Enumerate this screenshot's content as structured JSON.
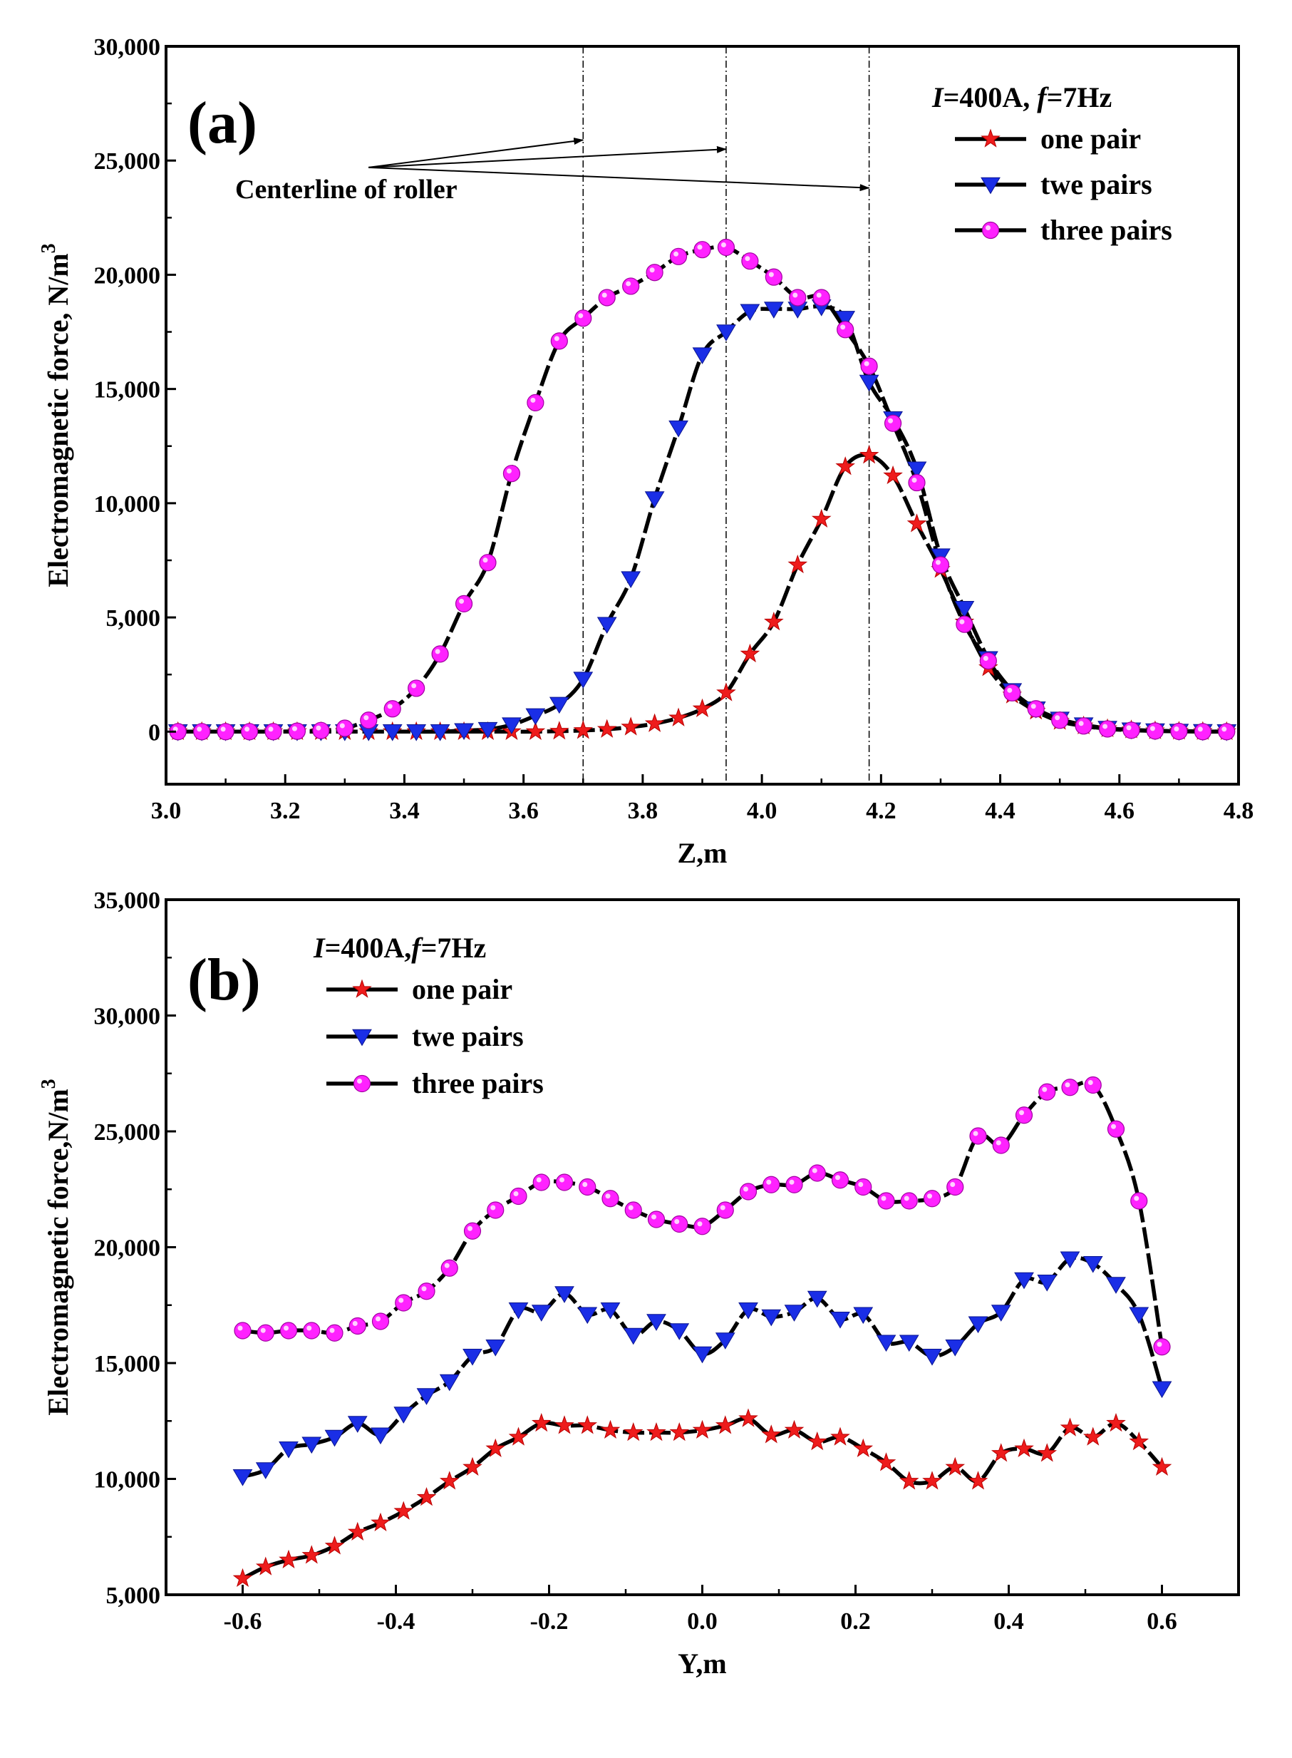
{
  "chart_data": [
    {
      "type": "line",
      "panel_label": "(a)",
      "xlabel": "Z,m",
      "ylabel": "Electromagnetic force,  N/m",
      "ylabel_sup": "3",
      "xlim": [
        3.0,
        4.8
      ],
      "ylim": [
        -2300,
        30000
      ],
      "xticks": [
        3.0,
        3.2,
        3.4,
        3.6,
        3.8,
        4.0,
        4.2,
        4.4,
        4.6,
        4.8
      ],
      "xtick_labels": [
        "3.0",
        "3.2",
        "3.4",
        "3.6",
        "3.8",
        "4.0",
        "4.2",
        "4.4",
        "4.6",
        "4.8"
      ],
      "yticks": [
        0,
        5000,
        10000,
        15000,
        20000,
        25000,
        30000
      ],
      "ytick_labels": [
        "0",
        "5,000",
        "10,000",
        "15,000",
        "20,000",
        "25,000",
        "30,000"
      ],
      "legend_title_var1": "I",
      "legend_title_rest1": "=400A,  ",
      "legend_title_var2": "f",
      "legend_title_rest2": "=7Hz",
      "legend_position": "top-right",
      "vlines": [
        3.7,
        3.94,
        4.18
      ],
      "annotation": {
        "text": "Centerline of roller",
        "arrow_origin": [
          3.34,
          24700
        ],
        "arrow_targets": [
          [
            3.7,
            25900
          ],
          [
            3.94,
            25500
          ],
          [
            4.18,
            23800
          ]
        ]
      },
      "series": [
        {
          "name": "one  pair",
          "marker": "star",
          "color": "#ee1c1c",
          "x": [
            3.02,
            3.06,
            3.1,
            3.14,
            3.18,
            3.22,
            3.26,
            3.3,
            3.34,
            3.38,
            3.42,
            3.46,
            3.5,
            3.54,
            3.58,
            3.62,
            3.66,
            3.7,
            3.74,
            3.78,
            3.82,
            3.86,
            3.9,
            3.94,
            3.98,
            4.02,
            4.06,
            4.1,
            4.14,
            4.18,
            4.22,
            4.26,
            4.3,
            4.34,
            4.38,
            4.42,
            4.46,
            4.5,
            4.54,
            4.58,
            4.62,
            4.66,
            4.7,
            4.74,
            4.78
          ],
          "values": [
            0,
            0,
            0,
            0,
            0,
            0,
            0,
            0,
            0,
            0,
            0,
            0,
            0,
            0,
            0,
            0,
            20,
            50,
            100,
            200,
            350,
            600,
            1000,
            1700,
            3400,
            4800,
            7300,
            9300,
            11600,
            12100,
            11200,
            9100,
            7100,
            4800,
            2800,
            1600,
            900,
            450,
            250,
            130,
            80,
            40,
            20,
            10,
            0
          ]
        },
        {
          "name": "twe pairs",
          "marker": "triangle-down",
          "color": "#1a2ee6",
          "x": [
            3.02,
            3.06,
            3.1,
            3.14,
            3.18,
            3.22,
            3.26,
            3.3,
            3.34,
            3.38,
            3.42,
            3.46,
            3.5,
            3.54,
            3.58,
            3.62,
            3.66,
            3.7,
            3.74,
            3.78,
            3.82,
            3.86,
            3.9,
            3.94,
            3.98,
            4.02,
            4.06,
            4.1,
            4.14,
            4.18,
            4.22,
            4.26,
            4.3,
            4.34,
            4.38,
            4.42,
            4.46,
            4.5,
            4.54,
            4.58,
            4.62,
            4.66,
            4.7,
            4.74,
            4.78
          ],
          "values": [
            0,
            0,
            0,
            0,
            0,
            0,
            0,
            0,
            0,
            0,
            0,
            0,
            50,
            100,
            300,
            700,
            1200,
            2300,
            4700,
            6700,
            10200,
            13300,
            16500,
            17500,
            18400,
            18500,
            18500,
            18600,
            18100,
            15300,
            13700,
            11500,
            7700,
            5400,
            3200,
            1800,
            1000,
            550,
            300,
            150,
            80,
            40,
            20,
            10,
            0
          ]
        },
        {
          "name": "three pairs",
          "marker": "circle",
          "color": "#ff22ff",
          "x": [
            3.02,
            3.06,
            3.1,
            3.14,
            3.18,
            3.22,
            3.26,
            3.3,
            3.34,
            3.38,
            3.42,
            3.46,
            3.5,
            3.54,
            3.58,
            3.62,
            3.66,
            3.7,
            3.74,
            3.78,
            3.82,
            3.86,
            3.9,
            3.94,
            3.98,
            4.02,
            4.06,
            4.1,
            4.14,
            4.18,
            4.22,
            4.26,
            4.3,
            4.34,
            4.38,
            4.42,
            4.46,
            4.5,
            4.54,
            4.58,
            4.62,
            4.66,
            4.7,
            4.74,
            4.78
          ],
          "values": [
            0,
            0,
            0,
            0,
            0,
            20,
            50,
            150,
            500,
            1000,
            1900,
            3400,
            5600,
            7400,
            11300,
            14400,
            17100,
            18100,
            19000,
            19500,
            20100,
            20800,
            21100,
            21200,
            20600,
            19900,
            19000,
            19000,
            17600,
            16000,
            13500,
            10900,
            7300,
            4700,
            3100,
            1700,
            1000,
            500,
            250,
            120,
            60,
            30,
            10,
            0,
            0
          ]
        }
      ]
    },
    {
      "type": "line",
      "panel_label": "(b)",
      "xlabel": "Y,m",
      "ylabel": "Electromagnetic force,N/m",
      "ylabel_sup": "3",
      "xlim": [
        -0.7,
        0.7
      ],
      "ylim": [
        5000,
        35000
      ],
      "xticks": [
        -0.6,
        -0.4,
        -0.2,
        0.0,
        0.2,
        0.4,
        0.6
      ],
      "xtick_labels": [
        "-0.6",
        "-0.4",
        "-0.2",
        "0.0",
        "0.2",
        "0.4",
        "0.6"
      ],
      "yticks": [
        5000,
        10000,
        15000,
        20000,
        25000,
        30000,
        35000
      ],
      "ytick_labels": [
        "5,000",
        "10,000",
        "15,000",
        "20,000",
        "25,000",
        "30,000",
        "35,000"
      ],
      "legend_title_var1": "I",
      "legend_title_rest1": "=400A,",
      "legend_title_var2": "f",
      "legend_title_rest2": "=7Hz",
      "legend_position": "top-left",
      "series": [
        {
          "name": "one pair",
          "marker": "star",
          "color": "#ee1c1c",
          "x": [
            -0.6,
            -0.57,
            -0.54,
            -0.51,
            -0.48,
            -0.45,
            -0.42,
            -0.39,
            -0.36,
            -0.33,
            -0.3,
            -0.27,
            -0.24,
            -0.21,
            -0.18,
            -0.15,
            -0.12,
            -0.09,
            -0.06,
            -0.03,
            0.0,
            0.03,
            0.06,
            0.09,
            0.12,
            0.15,
            0.18,
            0.21,
            0.24,
            0.27,
            0.3,
            0.33,
            0.36,
            0.39,
            0.42,
            0.45,
            0.48,
            0.51,
            0.54,
            0.57,
            0.6
          ],
          "values": [
            5700,
            6200,
            6500,
            6700,
            7100,
            7700,
            8100,
            8600,
            9200,
            9900,
            10500,
            11300,
            11800,
            12400,
            12300,
            12300,
            12100,
            12000,
            12000,
            12000,
            12100,
            12300,
            12600,
            11900,
            12100,
            11600,
            11800,
            11300,
            10700,
            9900,
            9900,
            10500,
            9900,
            11100,
            11300,
            11100,
            12200,
            11800,
            12400,
            11600,
            10500
          ]
        },
        {
          "name": "twe pairs",
          "marker": "triangle-down",
          "color": "#1a2ee6",
          "x": [
            -0.6,
            -0.57,
            -0.54,
            -0.51,
            -0.48,
            -0.45,
            -0.42,
            -0.39,
            -0.36,
            -0.33,
            -0.3,
            -0.27,
            -0.24,
            -0.21,
            -0.18,
            -0.15,
            -0.12,
            -0.09,
            -0.06,
            -0.03,
            0.0,
            0.03,
            0.06,
            0.09,
            0.12,
            0.15,
            0.18,
            0.21,
            0.24,
            0.27,
            0.3,
            0.33,
            0.36,
            0.39,
            0.42,
            0.45,
            0.48,
            0.51,
            0.54,
            0.57,
            0.6
          ],
          "values": [
            10100,
            10400,
            11300,
            11500,
            11800,
            12400,
            11900,
            12800,
            13600,
            14200,
            15300,
            15700,
            17300,
            17200,
            18000,
            17100,
            17300,
            16200,
            16800,
            16400,
            15400,
            16000,
            17300,
            17000,
            17200,
            17800,
            16900,
            17100,
            15900,
            15900,
            15300,
            15700,
            16700,
            17200,
            18600,
            18500,
            19500,
            19300,
            18400,
            17100,
            13900
          ]
        },
        {
          "name": "three pairs",
          "marker": "circle",
          "color": "#ff22ff",
          "x": [
            -0.6,
            -0.57,
            -0.54,
            -0.51,
            -0.48,
            -0.45,
            -0.42,
            -0.39,
            -0.36,
            -0.33,
            -0.3,
            -0.27,
            -0.24,
            -0.21,
            -0.18,
            -0.15,
            -0.12,
            -0.09,
            -0.06,
            -0.03,
            0.0,
            0.03,
            0.06,
            0.09,
            0.12,
            0.15,
            0.18,
            0.21,
            0.24,
            0.27,
            0.3,
            0.33,
            0.36,
            0.39,
            0.42,
            0.45,
            0.48,
            0.51,
            0.54,
            0.57,
            0.6
          ],
          "values": [
            16400,
            16300,
            16400,
            16400,
            16300,
            16600,
            16800,
            17600,
            18100,
            19100,
            20700,
            21600,
            22200,
            22800,
            22800,
            22600,
            22100,
            21600,
            21200,
            21000,
            20900,
            21600,
            22400,
            22700,
            22700,
            23200,
            22900,
            22600,
            22000,
            22000,
            22100,
            22600,
            24800,
            24400,
            25700,
            26700,
            26900,
            27000,
            25100,
            22000,
            15700
          ]
        }
      ]
    }
  ]
}
